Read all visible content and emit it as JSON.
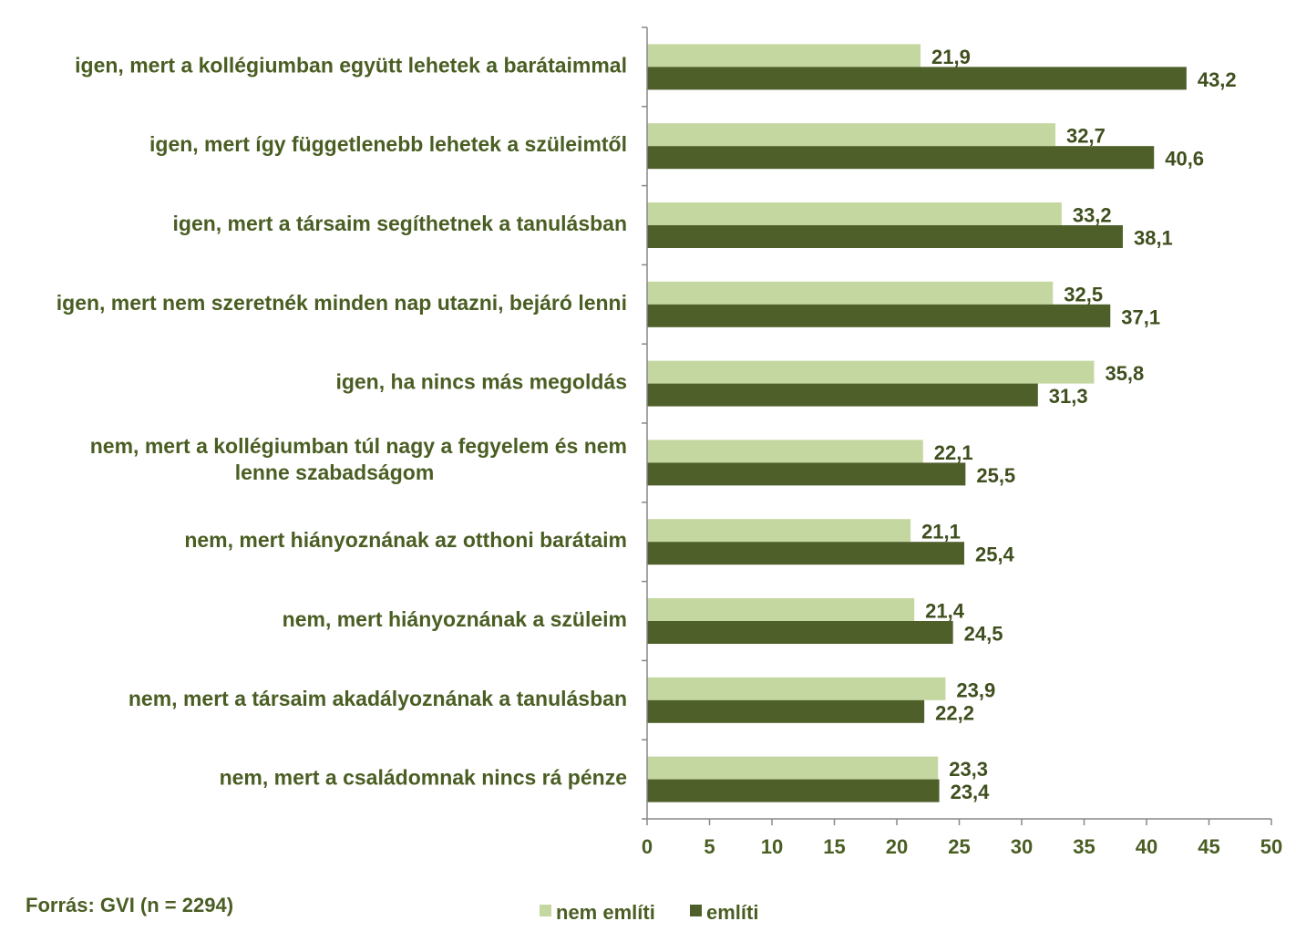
{
  "chart_data": {
    "type": "bar",
    "orientation": "horizontal",
    "categories": [
      "igen, mert a kollégiumban együtt lehetek a barátaimmal",
      "igen, mert így függetlenebb lehetek a szüleimtől",
      "igen, mert a társaim segíthetnek a tanulásban",
      "igen, mert nem szeretnék minden nap utazni, bejáró lenni",
      "igen, ha nincs más megoldás",
      [
        "nem, mert a kollégiumban túl nagy a fegyelem és nem",
        "lenne szabadságom"
      ],
      "nem, mert hiányoznának az otthoni barátaim",
      "nem, mert hiányoznának a szüleim",
      "nem, mert a társaim akadályoznának a tanulásban",
      "nem, mert a családomnak nincs rá pénze"
    ],
    "series": [
      {
        "name": "nem említi",
        "color": "#c4d7a0",
        "values": [
          21.9,
          32.7,
          33.2,
          32.5,
          35.8,
          22.1,
          21.1,
          21.4,
          23.9,
          23.3
        ],
        "labels": [
          "21,9",
          "32,7",
          "33,2",
          "32,5",
          "35,8",
          "22,1",
          "21,1",
          "21,4",
          "23,9",
          "23,3"
        ]
      },
      {
        "name": "említi",
        "color": "#4e5f2a",
        "values": [
          43.2,
          40.6,
          38.1,
          37.1,
          31.3,
          25.5,
          25.4,
          24.5,
          22.2,
          23.4
        ],
        "labels": [
          "43,2",
          "40,6",
          "38,1",
          "37,1",
          "31,3",
          "25,5",
          "25,4",
          "24,5",
          "22,2",
          "23,4"
        ]
      }
    ],
    "xlim": [
      0,
      50
    ],
    "xticks": [
      0,
      5,
      10,
      15,
      20,
      25,
      30,
      35,
      40,
      45,
      50
    ],
    "grid": false,
    "legend_position": "bottom"
  },
  "source": "Forrás: GVI (n = 2294)",
  "colors": {
    "text": "#4a5e23",
    "value_text": "#3f4f1e",
    "axis": "#888888"
  }
}
